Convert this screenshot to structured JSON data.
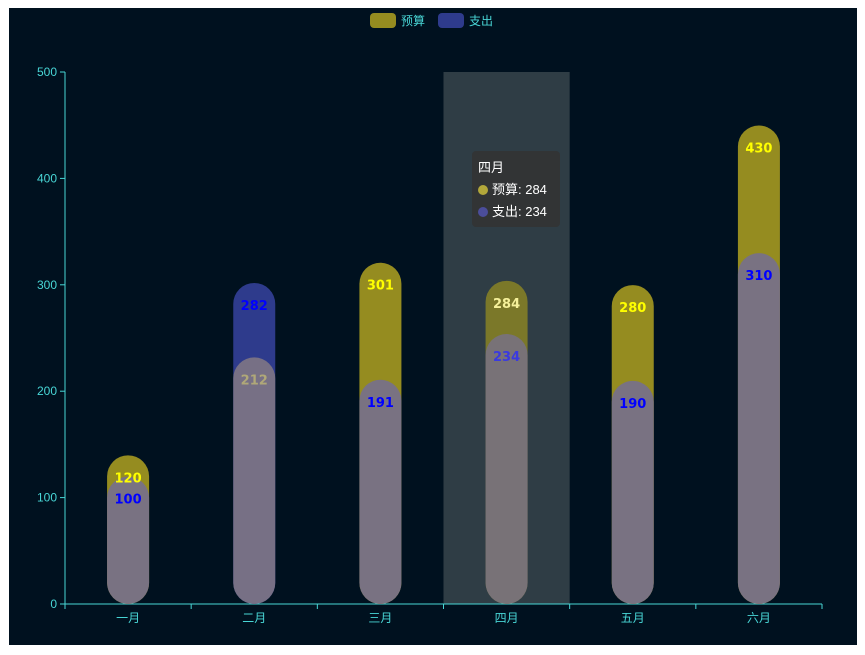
{
  "chart_data": {
    "type": "bar",
    "categories": [
      "一月",
      "二月",
      "三月",
      "四月",
      "五月",
      "六月"
    ],
    "series": [
      {
        "name": "预算",
        "values": [
          120,
          212,
          301,
          284,
          280,
          430
        ],
        "color": "#958c20",
        "label_color": "#ffff00"
      },
      {
        "name": "支出",
        "values": [
          100,
          282,
          191,
          234,
          190,
          310
        ],
        "color": "#2e3b8c",
        "label_color": "#0000ff"
      }
    ],
    "overlay_color": "#787185",
    "ylim": [
      0,
      500
    ],
    "yticks": [
      0,
      100,
      200,
      300,
      400,
      500
    ],
    "legend_position": "top-center",
    "highlighted_category": "四月",
    "tooltip": {
      "title": "四月",
      "rows": [
        {
          "name": "预算",
          "value": "284",
          "text": "预算: 284",
          "color": "#b2a73a"
        },
        {
          "name": "支出",
          "value": "234",
          "text": "支出: 234",
          "color": "#4b4d9a"
        }
      ]
    },
    "colors": {
      "background": "#00111f",
      "axis": "#48d6d6",
      "highlight_band": "#2f3d45"
    }
  }
}
